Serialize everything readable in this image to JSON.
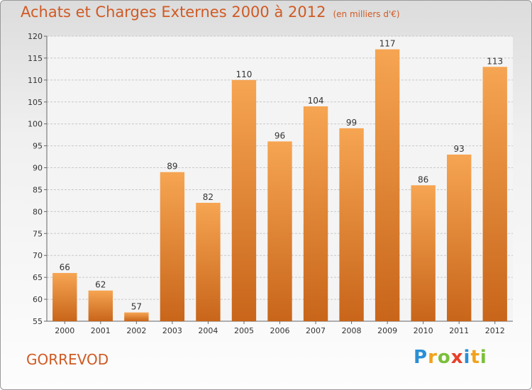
{
  "title": "Achats et Charges Externes 2000 à 2012",
  "subtitle": "(en milliers d'€)",
  "town": "GORREVOD",
  "logo": {
    "letters": [
      "P",
      "r",
      "o",
      "x",
      "i",
      "t",
      "i"
    ],
    "colors": [
      "#2a8fd6",
      "#f2a21c",
      "#7bbf3a",
      "#e8402a",
      "#2a8fd6",
      "#f2a21c",
      "#7bbf3a"
    ]
  },
  "colors": {
    "bar_light": "#f6a552",
    "bar_dark": "#c8651a",
    "text": "#d05a24"
  },
  "chart_data": {
    "type": "bar",
    "categories": [
      "2000",
      "2001",
      "2002",
      "2003",
      "2004",
      "2005",
      "2006",
      "2007",
      "2008",
      "2009",
      "2010",
      "2011",
      "2012"
    ],
    "values": [
      66,
      62,
      57,
      89,
      82,
      110,
      96,
      104,
      99,
      117,
      86,
      93,
      113
    ],
    "title": "Achats et Charges Externes 2000 à 2012",
    "xlabel": "",
    "ylabel": "",
    "ylim": [
      55,
      120
    ],
    "yticks": [
      55,
      60,
      65,
      70,
      75,
      80,
      85,
      90,
      95,
      100,
      105,
      110,
      115,
      120
    ],
    "grid": true,
    "data_labels": true
  }
}
